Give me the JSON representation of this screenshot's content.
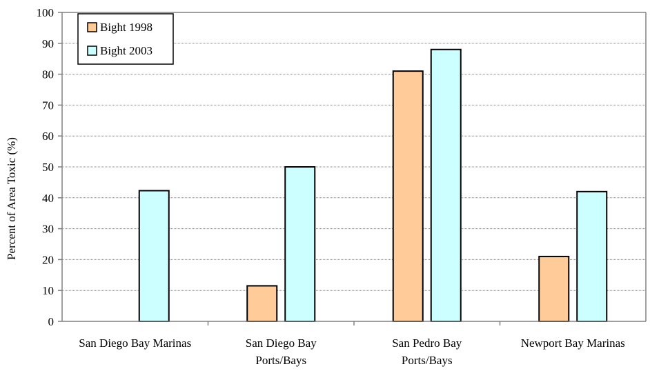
{
  "chart_data": {
    "type": "bar",
    "title": "",
    "xlabel": "",
    "ylabel": "Percent of Area Toxic (%)",
    "ylim": [
      0,
      100
    ],
    "yticks": [
      0,
      10,
      20,
      30,
      40,
      50,
      60,
      70,
      80,
      90,
      100
    ],
    "grid": true,
    "legend_position": "top-left",
    "categories": [
      [
        "San Diego Bay Marinas"
      ],
      [
        "San Diego Bay",
        "Ports/Bays"
      ],
      [
        "San Pedro Bay",
        "Ports/Bays"
      ],
      [
        "Newport Bay Marinas"
      ]
    ],
    "series": [
      {
        "name": "Bight 1998",
        "color": "#FFCC99",
        "values": [
          0,
          11.5,
          81,
          21
        ]
      },
      {
        "name": "Bight 2003",
        "color": "#CCFFFF",
        "values": [
          42.3,
          50,
          88,
          42
        ]
      }
    ]
  }
}
